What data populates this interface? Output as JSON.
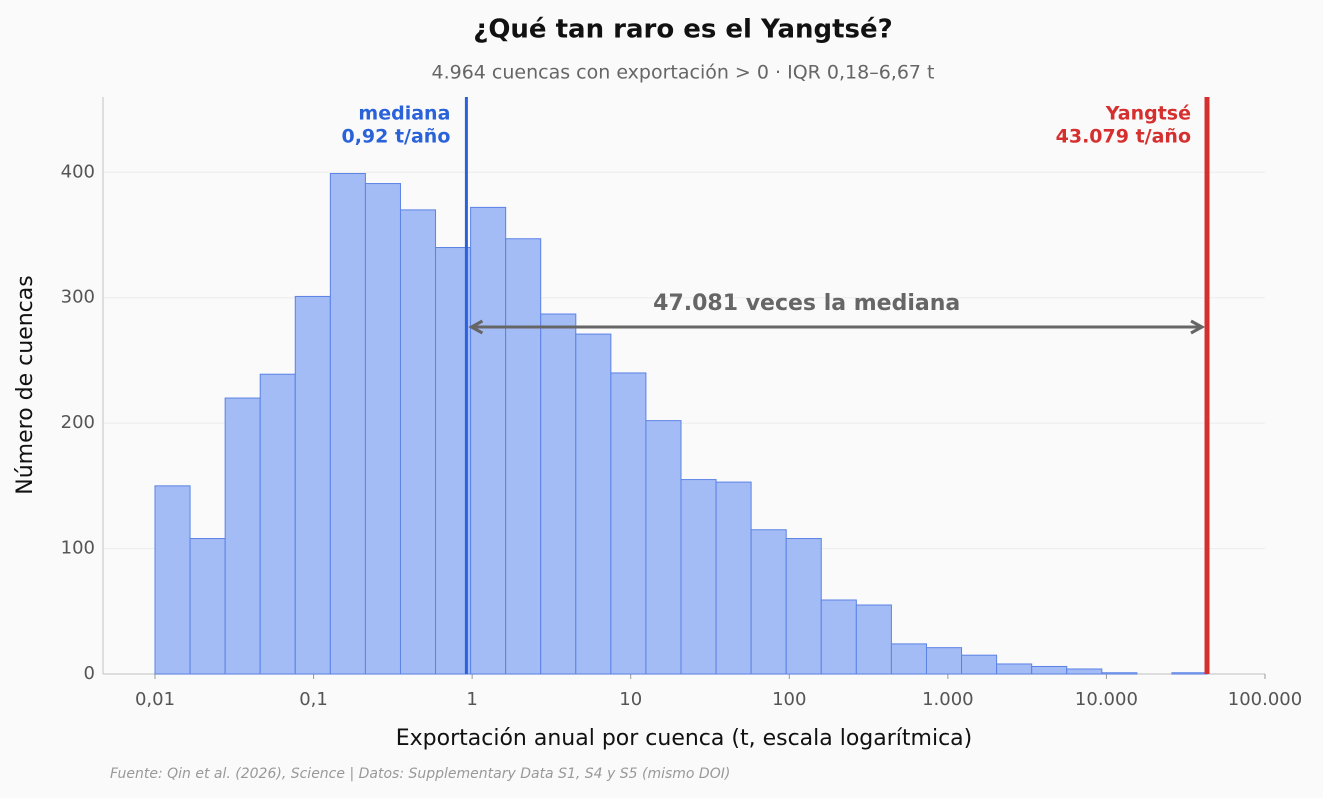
{
  "chart_data": {
    "type": "histogram",
    "title": "¿Qué tan raro es el Yangtsé?",
    "subtitle": "4.964 cuencas con exportación > 0 · IQR 0,18–6,67 t",
    "x_label": "Exportación anual por cuenca (t, escala logarítmica)",
    "y_label": "Número de cuencas",
    "source": "Fuente: Qin et al. (2026), Science | Datos: Supplementary Data S1, S4 y S5 (mismo DOI)",
    "x_log": true,
    "grid": true,
    "color": "#a4bcf5",
    "edge_color": "#5b82e6",
    "bins": [
      0.01,
      0.01664,
      0.02769,
      0.04607,
      0.07666,
      0.1276,
      0.2123,
      0.3532,
      0.5877,
      0.9779,
      1.627,
      2.707,
      4.505,
      7.496,
      12.47,
      20.76,
      34.54,
      57.46,
      95.63,
      159.1,
      264.8,
      440.6,
      733.2,
      1220,
      2030,
      3378,
      5620,
      9352,
      15560,
      25890,
      43080
    ],
    "values": [
      150,
      108,
      220,
      239,
      301,
      399,
      391,
      370,
      340,
      372,
      347,
      287,
      271,
      240,
      202,
      155,
      153,
      115,
      108,
      59,
      55,
      24,
      21,
      15,
      8,
      6,
      4,
      1,
      0,
      1
    ],
    "xlim": [
      0.0047,
      100000
    ],
    "xticks": [
      {
        "value": 0.01,
        "label": "0,01"
      },
      {
        "value": 0.1,
        "label": "0,1"
      },
      1,
      10,
      100,
      {
        "value": 1000,
        "label": "1.000"
      },
      {
        "value": 10000,
        "label": "10.000"
      },
      {
        "value": 100000,
        "label": "100.000"
      }
    ],
    "ylim": [
      0,
      460
    ],
    "yticks": [
      0,
      100,
      200,
      300,
      400
    ],
    "annotations": {
      "median": {
        "label": "mediana",
        "value": 0.92,
        "value_label": "0,92 t/año",
        "color": "#2a62d9"
      },
      "yangtze": {
        "label": "Yangtsé",
        "value": 43079,
        "value_label": "43.079 t/año",
        "color": "#d62f2f"
      },
      "ratio": {
        "label": "47.081 veces la mediana",
        "color": "#666666"
      }
    }
  }
}
